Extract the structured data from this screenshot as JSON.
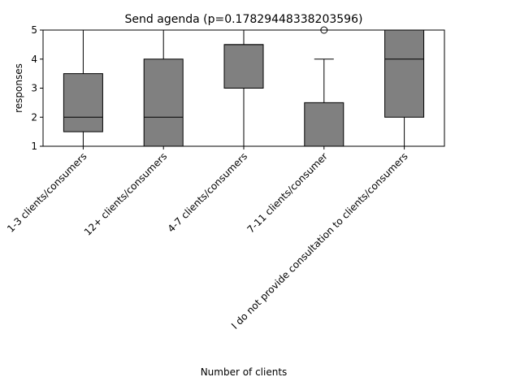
{
  "chart_data": {
    "type": "box",
    "title": "Send agenda (p=0.17829448338203596)",
    "xlabel": "Number of clients",
    "ylabel": "responses",
    "ylim": [
      1,
      5
    ],
    "yticks": [
      1,
      2,
      3,
      4,
      5
    ],
    "grid": false,
    "box_color": "#808080",
    "categories": [
      "1-3 clients/consumers",
      "12+ clients/consumers",
      "4-7 clients/consumers",
      "7-11 clients/consumer",
      "I do not provide consultation to clients/consumers"
    ],
    "boxes": [
      {
        "whisker_low": 1,
        "q1": 1.5,
        "median": 2,
        "q3": 3.5,
        "whisker_high": 5,
        "outliers": []
      },
      {
        "whisker_low": 1,
        "q1": 1,
        "median": 2,
        "q3": 4,
        "whisker_high": 5,
        "outliers": []
      },
      {
        "whisker_low": 1,
        "q1": 3,
        "median": 4.5,
        "q3": 4.5,
        "whisker_high": 5,
        "outliers": []
      },
      {
        "whisker_low": 1,
        "q1": 1,
        "median": 1,
        "q3": 2.5,
        "whisker_high": 4,
        "outliers": [
          5
        ]
      },
      {
        "whisker_low": 1,
        "q1": 2,
        "median": 4,
        "q3": 5,
        "whisker_high": 5,
        "outliers": []
      }
    ]
  }
}
